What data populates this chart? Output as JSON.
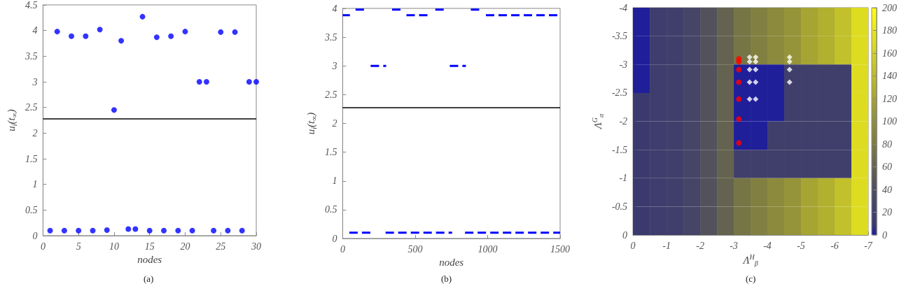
{
  "chart_data": [
    {
      "type": "scatter",
      "xlabel": "nodes",
      "ylabel": "u$_{i}$(t$_{∞}$)",
      "annotations": [
        "(a)"
      ],
      "marker": "circle",
      "x": [
        1,
        2,
        3,
        4,
        5,
        6,
        7,
        8,
        9,
        10,
        11,
        12,
        13,
        14,
        15,
        16,
        17,
        18,
        19,
        20,
        21,
        22,
        23,
        24,
        25,
        26,
        27,
        28,
        29,
        30
      ],
      "series": [
        {
          "color": "#0000ff",
          "values": [
            0.1,
            3.98,
            0.1,
            3.89,
            0.1,
            3.89,
            0.1,
            4.02,
            0.11,
            2.45,
            3.8,
            0.13,
            0.13,
            4.27,
            0.1,
            3.87,
            0.1,
            3.89,
            0.1,
            3.98,
            0.1,
            3.0,
            3.0,
            0.1,
            3.97,
            0.1,
            3.97,
            0.1,
            3.0,
            3.0
          ]
        }
      ],
      "xlim": [
        0,
        30
      ],
      "xticks": [
        0,
        5,
        10,
        15,
        20,
        25,
        30
      ],
      "ylim": [
        0,
        4.5
      ],
      "yticks": [
        0,
        0.5,
        1,
        1.5,
        2,
        2.5,
        3,
        3.5,
        4,
        4.5
      ],
      "ref_lines": [
        {
          "axis": "y",
          "value": 2.28,
          "color": "#000000"
        }
      ]
    },
    {
      "type": "line",
      "xlabel": "nodes",
      "ylabel": "u$_{i}$(t$_{∞}$)",
      "annotations": [
        "(b)"
      ],
      "line_style": "dashed",
      "marker": "none",
      "series": [
        {
          "color": "#0000ff",
          "x": [
            0,
            50,
            70,
            440,
            601,
            620,
            988,
            1500
          ],
          "values": [
            3.88,
            3.88,
            null,
            3.88,
            3.88,
            null,
            3.88,
            3.88
          ]
        },
        {
          "color": "#0000ff",
          "x": [
            89,
            153,
            170,
            341,
            402,
            420,
            639,
            700,
            720,
            884,
            953
          ],
          "values": [
            3.98,
            3.98,
            null,
            3.98,
            3.98,
            null,
            3.98,
            3.98,
            null,
            3.98,
            3.98
          ]
        },
        {
          "color": "#0000ff",
          "x": [
            193,
            300,
            320,
            739,
            850
          ],
          "values": [
            3.0,
            3.0,
            null,
            3.0,
            3.0
          ]
        },
        {
          "color": "#0000ff",
          "x": [
            46,
            207,
            250,
            296,
            755,
            800,
            844,
            1500
          ],
          "values": [
            0.1,
            0.1,
            null,
            0.1,
            0.1,
            null,
            0.1,
            0.1
          ]
        }
      ],
      "xlim": [
        0,
        1500
      ],
      "xticks": [
        0,
        500,
        1000,
        1500
      ],
      "ylim": [
        0,
        4
      ],
      "yticks": [
        0,
        0.5,
        1,
        1.5,
        2,
        2.5,
        3,
        3.5,
        4
      ],
      "ref_lines": [
        {
          "axis": "y",
          "value": 2.28,
          "color": "#000000"
        }
      ]
    },
    {
      "type": "heatmap",
      "xlabel": "Λ$^{H}$$_{β}$",
      "ylabel": "Λ$^{G}$$_{α}$",
      "annotations": [
        "(c)"
      ],
      "x": [
        -0.25,
        -0.75,
        -1.25,
        -1.75,
        -2.25,
        -2.75,
        -3.25,
        -3.75,
        -4.25,
        -4.75,
        -5.25,
        -5.75,
        -6.25,
        -6.75
      ],
      "y": [
        -3.75,
        -3.25,
        -2.75,
        -2.25,
        -1.75,
        -1.25,
        -0.75,
        -0.25
      ],
      "cells": [
        [
          0,
          15,
          20,
          30,
          45,
          60,
          75,
          85,
          95,
          105,
          120,
          130,
          145,
          170
        ],
        [
          0,
          15,
          20,
          30,
          45,
          60,
          75,
          85,
          95,
          105,
          120,
          130,
          145,
          170
        ],
        [
          0,
          15,
          20,
          30,
          45,
          60,
          0,
          0,
          0,
          20,
          20,
          20,
          20,
          170
        ],
        [
          10,
          15,
          20,
          30,
          45,
          60,
          0,
          0,
          0,
          20,
          20,
          20,
          20,
          170
        ],
        [
          10,
          15,
          20,
          30,
          45,
          60,
          0,
          0,
          20,
          20,
          20,
          20,
          20,
          170
        ],
        [
          10,
          15,
          20,
          30,
          45,
          60,
          20,
          20,
          20,
          20,
          20,
          20,
          20,
          170
        ],
        [
          10,
          15,
          20,
          30,
          45,
          60,
          75,
          85,
          95,
          105,
          120,
          130,
          145,
          170
        ],
        [
          10,
          15,
          20,
          30,
          45,
          60,
          75,
          85,
          95,
          105,
          120,
          130,
          145,
          170
        ]
      ],
      "clim": [
        0,
        200
      ],
      "cticks": [
        0,
        20,
        40,
        60,
        80,
        100,
        120,
        140,
        160,
        180,
        200
      ],
      "series": [
        {
          "type": "scatter",
          "marker": "circle",
          "color": "#ff0000",
          "x": [
            -3.15,
            -3.15,
            -3.15,
            -3.15,
            -3.15,
            -3.15,
            -3.15
          ],
          "values": [
            -3.1,
            -3.05,
            -2.91,
            -2.69,
            -2.39,
            -2.04,
            -1.62
          ]
        },
        {
          "type": "scatter",
          "marker": "diamond",
          "color": "#ffffff",
          "x": [
            -3.47,
            -3.65,
            -4.66,
            -3.47,
            -3.65,
            -4.66,
            -3.47,
            -3.65,
            -4.66,
            -3.47,
            -3.65,
            -4.66,
            -3.47,
            -3.65
          ],
          "values": [
            -3.13,
            -3.13,
            -3.13,
            -3.05,
            -3.05,
            -3.05,
            -2.91,
            -2.91,
            -2.91,
            -2.69,
            -2.69,
            -2.69,
            -2.39,
            -2.39
          ]
        }
      ],
      "xlim": [
        0,
        -7
      ],
      "xticks": [
        0,
        -1,
        -2,
        -3,
        -4,
        -5,
        -6,
        -7
      ],
      "ylim": [
        0,
        -4
      ],
      "yticks": [
        0,
        -0.5,
        -1,
        -1.5,
        -2,
        -2.5,
        -3,
        -3.5,
        -4
      ]
    }
  ]
}
